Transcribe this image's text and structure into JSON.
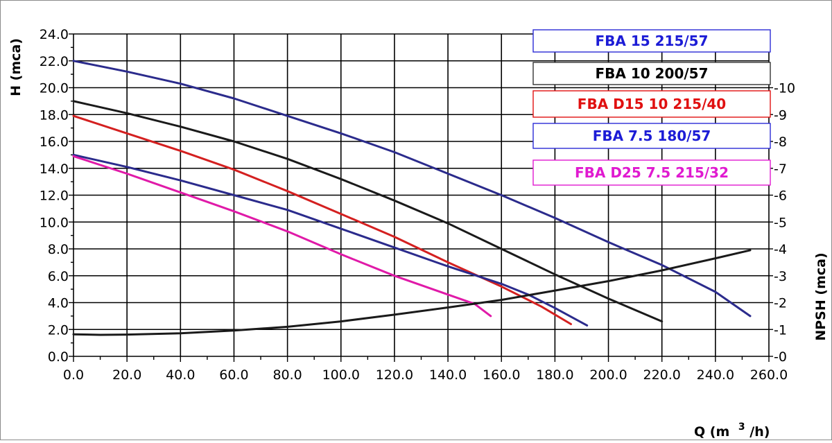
{
  "chart_data": {
    "type": "line",
    "xlabel": "Q (m",
    "xlabel_sup": "3",
    "xlabel_end": "/h)",
    "ylabel": "H (mca)",
    "y2label": "NPSH (mca)",
    "xlim": [
      0,
      260
    ],
    "ylim": [
      0,
      24
    ],
    "y2lim": [
      0,
      12
    ],
    "grid": true,
    "legend_position": "top-right",
    "x_ticks": [
      "0.0",
      "20.0",
      "40.0",
      "60.0",
      "80.0",
      "100.0",
      "120.0",
      "140.0",
      "160.0",
      "180.0",
      "200.0",
      "220.0",
      "240.0",
      "260.0"
    ],
    "y_ticks": [
      "0.0",
      "2.0",
      "4.0",
      "6.0",
      "8.0",
      "10.0",
      "12.0",
      "14.0",
      "16.0",
      "18.0",
      "20.0",
      "22.0",
      "24.0"
    ],
    "y2_ticks": [
      "-0",
      "-1",
      "-2",
      "-3",
      "-4",
      "-5",
      "-6",
      "-7",
      "-8",
      "-9",
      "-10"
    ],
    "series": [
      {
        "name": "FBA 15 215/57",
        "color": "#2b2b8c",
        "axis": "left",
        "points": [
          [
            0,
            22.0
          ],
          [
            20,
            21.2
          ],
          [
            40,
            20.3
          ],
          [
            60,
            19.2
          ],
          [
            80,
            17.9
          ],
          [
            100,
            16.6
          ],
          [
            120,
            15.2
          ],
          [
            140,
            13.6
          ],
          [
            160,
            12.0
          ],
          [
            180,
            10.3
          ],
          [
            200,
            8.5
          ],
          [
            220,
            6.8
          ],
          [
            240,
            4.8
          ],
          [
            253,
            3.0
          ]
        ]
      },
      {
        "name": "FBA 10 200/57",
        "color": "#1a1a1a",
        "axis": "left",
        "points": [
          [
            0,
            19.0
          ],
          [
            20,
            18.1
          ],
          [
            40,
            17.1
          ],
          [
            60,
            16.0
          ],
          [
            80,
            14.7
          ],
          [
            100,
            13.2
          ],
          [
            120,
            11.6
          ],
          [
            140,
            9.9
          ],
          [
            160,
            8.0
          ],
          [
            180,
            6.1
          ],
          [
            200,
            4.3
          ],
          [
            220,
            2.6
          ]
        ]
      },
      {
        "name": "FBA D15 10 215/40",
        "color": "#d42020",
        "axis": "left",
        "points": [
          [
            0,
            17.9
          ],
          [
            20,
            16.6
          ],
          [
            40,
            15.3
          ],
          [
            60,
            13.9
          ],
          [
            80,
            12.3
          ],
          [
            100,
            10.6
          ],
          [
            120,
            8.9
          ],
          [
            140,
            7.0
          ],
          [
            160,
            5.2
          ],
          [
            175,
            3.7
          ],
          [
            186,
            2.4
          ]
        ]
      },
      {
        "name": "FBA 7.5 180/57",
        "color": "#2b2b8c",
        "axis": "left",
        "points": [
          [
            0,
            15.0
          ],
          [
            20,
            14.1
          ],
          [
            40,
            13.1
          ],
          [
            60,
            12.0
          ],
          [
            80,
            10.9
          ],
          [
            100,
            9.5
          ],
          [
            120,
            8.1
          ],
          [
            140,
            6.7
          ],
          [
            160,
            5.4
          ],
          [
            170,
            4.6
          ],
          [
            180,
            3.6
          ],
          [
            192,
            2.3
          ]
        ]
      },
      {
        "name": "FBA D25 7.5 215/32",
        "color": "#e01aa8",
        "axis": "left",
        "points": [
          [
            0,
            14.9
          ],
          [
            20,
            13.6
          ],
          [
            40,
            12.2
          ],
          [
            60,
            10.8
          ],
          [
            80,
            9.3
          ],
          [
            100,
            7.6
          ],
          [
            120,
            6.0
          ],
          [
            140,
            4.6
          ],
          [
            150,
            3.9
          ],
          [
            156,
            3.0
          ]
        ]
      },
      {
        "name": "NPSH",
        "color": "#1a1a1a",
        "axis": "right",
        "points": [
          [
            0,
            0.82
          ],
          [
            10,
            0.8
          ],
          [
            20,
            0.81
          ],
          [
            40,
            0.86
          ],
          [
            60,
            0.96
          ],
          [
            80,
            1.1
          ],
          [
            100,
            1.3
          ],
          [
            120,
            1.55
          ],
          [
            140,
            1.82
          ],
          [
            160,
            2.1
          ],
          [
            180,
            2.45
          ],
          [
            200,
            2.8
          ],
          [
            220,
            3.2
          ],
          [
            240,
            3.65
          ],
          [
            253,
            3.95
          ]
        ]
      }
    ],
    "legend": [
      {
        "label": "FBA 15 215/57",
        "color": "#1c1cd6",
        "border": "#2a2ad6"
      },
      {
        "label": "FBA 10 200/57",
        "color": "#000000",
        "border": "#333333"
      },
      {
        "label": "FBA D15 10 215/40",
        "color": "#e01010",
        "border": "#e01010"
      },
      {
        "label": "FBA 7.5 180/57",
        "color": "#1c1cd6",
        "border": "#2a2ad6"
      },
      {
        "label": "FBA D25 7.5 215/32",
        "color": "#e01ad0",
        "border": "#e01ad0"
      }
    ]
  }
}
